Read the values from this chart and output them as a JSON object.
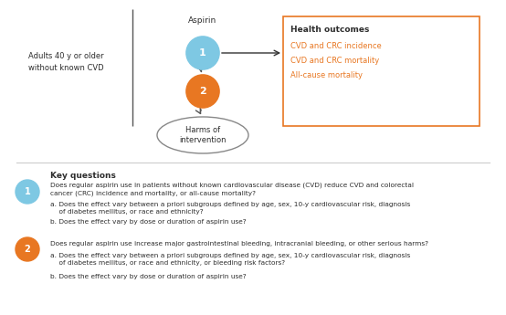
{
  "bg_color": "#ffffff",
  "circle1_color": "#7ec8e3",
  "circle1_edge": "#7ec8e3",
  "circle2_color": "#e87722",
  "circle2_edge": "#e87722",
  "harms_ellipse_color": "#ffffff",
  "harms_ellipse_edge": "#888888",
  "box_edge": "#e87722",
  "box_face": "#ffffff",
  "text_color_dark": "#2d2d2d",
  "text_color_orange": "#e87722",
  "aspirin_label": "Aspirin",
  "population_label": "Adults 40 y or older\nwithout known CVD",
  "health_outcomes_title": "Health outcomes",
  "health_outcomes_lines": [
    "CVD and CRC incidence",
    "CVD and CRC mortality",
    "All-cause mortality"
  ],
  "harms_label": "Harms of\nintervention",
  "kq_header": "Key questions",
  "kq1_main": "Does regular aspirin use in patients without known cardiovascular disease (CVD) reduce CVD and colorectal\ncancer (CRC) incidence and mortality, or all-cause mortality?",
  "kq1_a": "a. Does the effect vary between a priori subgroups defined by age, sex, 10-y cardiovascular risk, diagnosis\n    of diabetes mellitus, or race and ethnicity?",
  "kq1_b": "b. Does the effect vary by dose or duration of aspirin use?",
  "kq2_main": "Does regular aspirin use increase major gastrointestinal bleeding, intracranial bleeding, or other serious harms?",
  "kq2_a": "a. Does the effect vary between a priori subgroups defined by age, sex, 10-y cardiovascular risk, diagnosis\n    of diabetes mellitus, or race and ethnicity, or bleeding risk factors?",
  "kq2_b": "b. Does the effect vary by dose or duration of aspirin use?",
  "fig_width": 5.54,
  "fig_height": 3.45,
  "dpi": 100
}
